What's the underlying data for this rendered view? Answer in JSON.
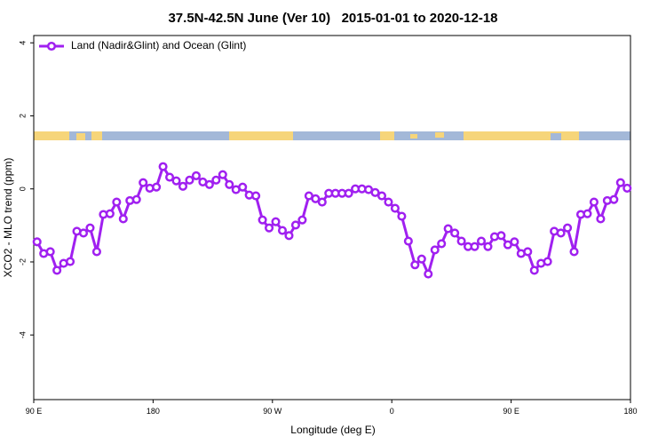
{
  "chart_data": {
    "type": "line",
    "title": "37.5N-42.5N June (Ver 10)   2015-01-01 to 2020-12-18",
    "x_label": "Longitude (deg E)",
    "y_label": "XCO2 - MLO trend (ppm)",
    "xlim": [
      90,
      540
    ],
    "ylim": [
      -5.77,
      4.2
    ],
    "xticks": [
      {
        "value": 90,
        "label": "90 E"
      },
      180,
      {
        "value": 270,
        "label": "90 W"
      },
      {
        "value": 360,
        "label": "0"
      },
      {
        "value": 450,
        "label": "90 E"
      },
      {
        "value": 540,
        "label": "180"
      }
    ],
    "yticks": [
      -4,
      -2,
      0,
      2,
      4
    ],
    "legend": "topleft",
    "x": [
      92.5,
      97.5,
      102.5,
      107.5,
      112.5,
      117.5,
      122.5,
      127.5,
      132.5,
      137.5,
      142.5,
      147.5,
      152.5,
      157.5,
      162.5,
      167.5,
      172.5,
      177.5,
      182.5,
      187.5,
      192.5,
      197.5,
      202.5,
      207.5,
      212.5,
      217.5,
      222.5,
      227.5,
      232.5,
      237.5,
      242.5,
      247.5,
      252.5,
      257.5,
      262.5,
      267.5,
      272.5,
      277.5,
      282.5,
      287.5,
      292.5,
      297.5,
      302.5,
      307.5,
      312.5,
      317.5,
      322.5,
      327.5,
      332.5,
      337.5,
      342.5,
      347.5,
      352.5,
      357.5,
      362.5,
      367.5,
      372.5,
      377.5,
      382.5,
      387.5,
      392.5,
      397.5,
      402.5,
      407.5,
      412.5,
      417.5,
      422.5,
      427.5,
      432.5,
      437.5,
      442.5,
      447.5,
      452.5,
      457.5,
      462.5,
      467.5,
      472.5,
      477.5,
      482.5,
      487.5,
      492.5,
      497.5,
      502.5,
      507.5,
      512.5,
      517.5,
      522.5,
      527.5,
      532.5,
      537.5
    ],
    "series": [
      {
        "name": "Land (Nadir&Glint) and Ocean (Glint)",
        "color": "#a020f0",
        "values": [
          -1.45,
          -1.77,
          -1.72,
          -2.23,
          -2.04,
          -1.99,
          -1.16,
          -1.21,
          -1.07,
          -1.72,
          -0.7,
          -0.68,
          -0.36,
          -0.82,
          -0.32,
          -0.29,
          0.17,
          0.02,
          0.05,
          0.61,
          0.32,
          0.22,
          0.07,
          0.24,
          0.36,
          0.19,
          0.12,
          0.24,
          0.39,
          0.12,
          -0.02,
          0.05,
          -0.17,
          -0.19,
          -0.85,
          -1.07,
          -0.9,
          -1.14,
          -1.28,
          -0.99,
          -0.85,
          -0.19,
          -0.27,
          -0.36,
          -0.12,
          -0.12,
          -0.12,
          -0.12,
          0.0,
          0.0,
          -0.02,
          -0.1,
          -0.19,
          -0.36,
          -0.53,
          -0.75,
          -1.43,
          -2.08,
          -1.92,
          -2.33,
          -1.67,
          -1.5,
          -1.09,
          -1.21,
          -1.43,
          -1.58,
          -1.58,
          -1.43,
          -1.58,
          -1.31,
          -1.28,
          -1.53,
          -1.45,
          -1.77,
          -1.72,
          -2.23,
          -2.04,
          -1.99,
          -1.16,
          -1.21,
          -1.07,
          -1.72,
          -0.7,
          -0.68,
          -0.36,
          -0.82,
          -0.32,
          -0.29,
          0.17,
          0.02
        ]
      }
    ]
  }
}
